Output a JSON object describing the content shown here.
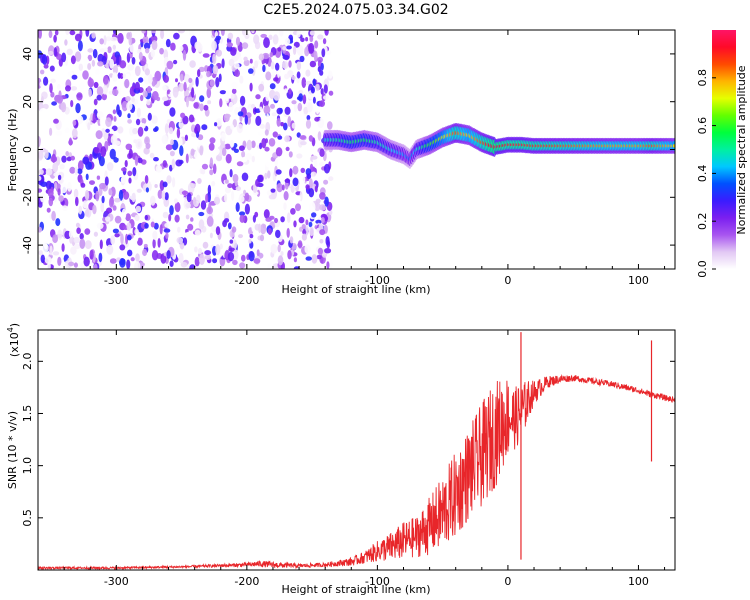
{
  "title": "C2E5.2024.075.03.34.G02",
  "chart_data": [
    {
      "type": "heatmap",
      "xlabel": "Height of straight line (km)",
      "ylabel": "Frequency (Hz)",
      "xlim": [
        -360,
        128
      ],
      "ylim": [
        -50,
        50
      ],
      "xticks": [
        -300,
        -200,
        -100,
        0,
        100
      ],
      "yticks": [
        -40,
        -20,
        0,
        20,
        40
      ],
      "colorbar": {
        "label": "Normalized spectral amplitude",
        "range": [
          0,
          1
        ],
        "ticks": [
          0.0,
          0.2,
          0.4,
          0.6,
          0.8
        ],
        "tick_labels": [
          "0.0",
          "0.2",
          "0.4",
          "0.6",
          "0.8"
        ],
        "colormap": [
          "#ffffff",
          "#e2c8f4",
          "#a855f0",
          "#7b1ff0",
          "#3a1cff",
          "#0050ff",
          "#00c8ff",
          "#00f0a0",
          "#00ff3c",
          "#64ff00",
          "#e6ff00",
          "#ffb400",
          "#ff4a00",
          "#ff0a28",
          "#ff1466"
        ]
      },
      "noise_region_x": [
        -360,
        -140
      ],
      "signal_track": {
        "x": [
          -140,
          -130,
          -120,
          -110,
          -100,
          -90,
          -80,
          -75,
          -70,
          -60,
          -50,
          -40,
          -30,
          -20,
          -10,
          0,
          10,
          20,
          40,
          60,
          80,
          100,
          110,
          128
        ],
        "freq": [
          4,
          4,
          3,
          4,
          3,
          0,
          -2,
          -4,
          0,
          2,
          5,
          7,
          6,
          3,
          1,
          2,
          2,
          1.5,
          1.5,
          1.5,
          1.5,
          1.5,
          1.5,
          1.5
        ],
        "amplitude": [
          0.45,
          0.5,
          0.55,
          0.55,
          0.5,
          0.45,
          0.4,
          0.35,
          0.45,
          0.6,
          0.7,
          0.85,
          0.75,
          0.85,
          0.95,
          0.9,
          0.9,
          0.88,
          0.85,
          0.82,
          0.8,
          0.8,
          0.85,
          0.75
        ]
      }
    },
    {
      "type": "line",
      "xlabel": "Height of straight line (km)",
      "ylabel": "SNR (10 * v/v)",
      "yunit_multiplier": "(x10",
      "yunit_exponent": "4",
      "yunit_close": ")",
      "xlim": [
        -360,
        128
      ],
      "ylim": [
        0,
        2.3
      ],
      "xticks": [
        -300,
        -200,
        -100,
        0,
        100
      ],
      "yticks": [
        0.5,
        1.0,
        1.5,
        2.0
      ],
      "ytick_labels": [
        "0.5",
        "1.0",
        "1.5",
        "2.0"
      ],
      "series": [
        {
          "color": "#e8262a",
          "x": [
            -360,
            -300,
            -250,
            -200,
            -190,
            -180,
            -160,
            -140,
            -120,
            -110,
            -100,
            -90,
            -80,
            -70,
            -60,
            -50,
            -40,
            -30,
            -20,
            -10,
            0,
            5,
            10,
            15,
            20,
            30,
            40,
            50,
            60,
            70,
            80,
            90,
            100,
            105,
            110,
            115,
            120,
            128
          ],
          "y": [
            0.02,
            0.02,
            0.03,
            0.05,
            0.06,
            0.05,
            0.04,
            0.05,
            0.08,
            0.12,
            0.18,
            0.22,
            0.28,
            0.32,
            0.42,
            0.55,
            0.72,
            0.92,
            1.1,
            1.3,
            1.48,
            1.45,
            1.5,
            1.62,
            1.7,
            1.8,
            1.83,
            1.84,
            1.82,
            1.8,
            1.78,
            1.75,
            1.72,
            1.7,
            1.68,
            1.67,
            1.65,
            1.63
          ],
          "noise_amplitude": [
            0.01,
            0.01,
            0.01,
            0.02,
            0.03,
            0.03,
            0.02,
            0.02,
            0.04,
            0.06,
            0.1,
            0.14,
            0.18,
            0.2,
            0.28,
            0.36,
            0.42,
            0.45,
            0.5,
            0.52,
            0.4,
            0.3,
            0.3,
            0.2,
            0.12,
            0.06,
            0.04,
            0.03,
            0.03,
            0.03,
            0.03,
            0.03,
            0.03,
            0.03,
            0.03,
            0.03,
            0.03,
            0.03
          ]
        }
      ],
      "spikes": [
        {
          "x": 10,
          "y_low": 0.1,
          "y_high": 2.28
        },
        {
          "x": 110,
          "y_low": 1.04,
          "y_high": 2.2
        }
      ]
    }
  ]
}
